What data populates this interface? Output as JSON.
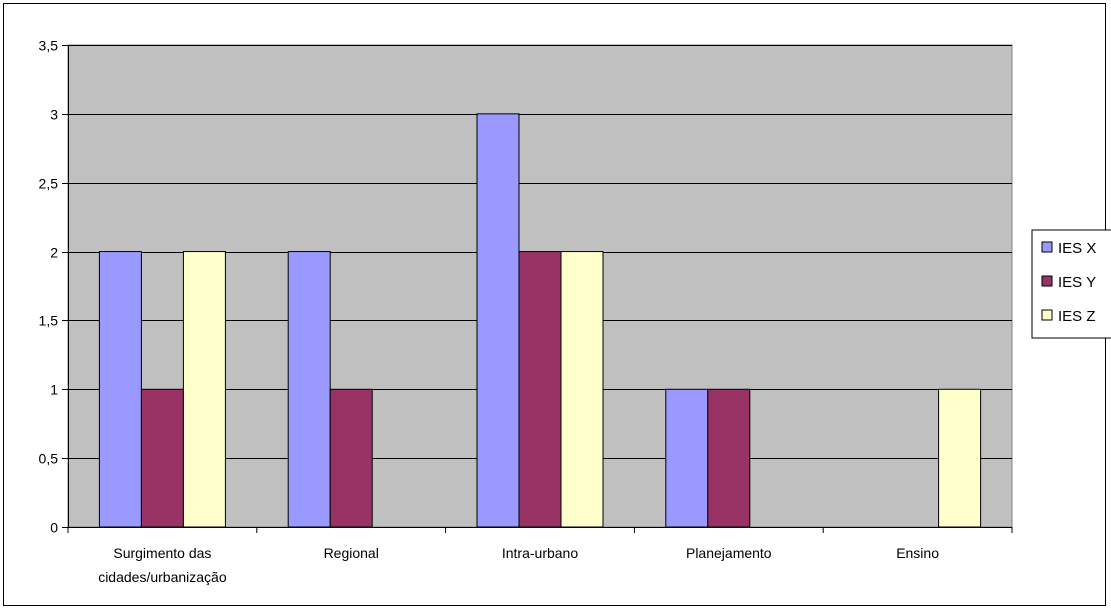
{
  "chart_data": {
    "type": "bar",
    "categories": [
      [
        "Surgimento das",
        "cidades/urbanização"
      ],
      [
        "Regional"
      ],
      [
        "Intra-urbano"
      ],
      [
        "Planejamento"
      ],
      [
        "Ensino"
      ]
    ],
    "series": [
      {
        "name": "IES X",
        "color": "#9999ff",
        "values": [
          2,
          2,
          3,
          1,
          0
        ]
      },
      {
        "name": "IES Y",
        "color": "#993366",
        "values": [
          1,
          1,
          2,
          1,
          0
        ]
      },
      {
        "name": "IES Z",
        "color": "#ffffcc",
        "values": [
          2,
          0,
          2,
          0,
          1
        ]
      }
    ],
    "ylim": [
      0,
      3.5
    ],
    "yticks": [
      0,
      0.5,
      1,
      1.5,
      2,
      2.5,
      3,
      3.5
    ],
    "ytick_labels": [
      "0",
      "0,5",
      "1",
      "1,5",
      "2",
      "2,5",
      "3",
      "3,5"
    ],
    "plot_background": "#c0c0c0",
    "grid": true,
    "legend_position": "right",
    "title": "",
    "xlabel": "",
    "ylabel": ""
  }
}
